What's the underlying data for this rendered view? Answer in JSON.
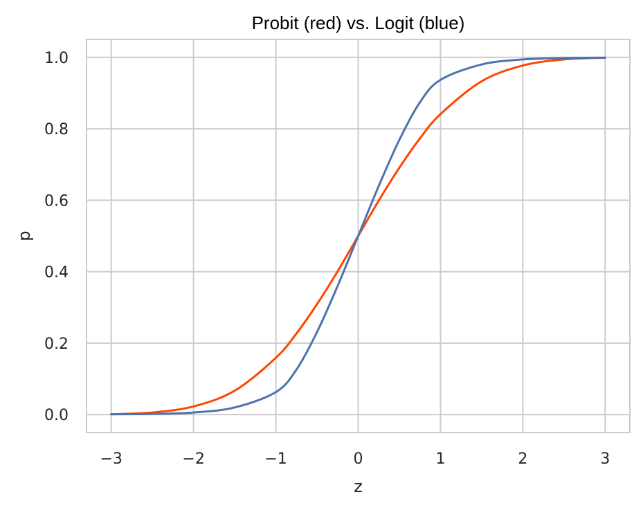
{
  "chart_data": {
    "type": "line",
    "title": "Probit (red) vs. Logit (blue)",
    "xlabel": "z",
    "ylabel": "p",
    "xlim": [
      -3.3,
      3.3
    ],
    "ylim": [
      -0.05,
      1.05
    ],
    "x_ticks": [
      -3,
      -2,
      -1,
      0,
      1,
      2,
      3
    ],
    "x_tick_labels": [
      "−3",
      "−2",
      "−1",
      "0",
      "1",
      "2",
      "3"
    ],
    "y_ticks": [
      0.0,
      0.2,
      0.4,
      0.6,
      0.8,
      1.0
    ],
    "y_tick_labels": [
      "0.0",
      "0.2",
      "0.4",
      "0.6",
      "0.8",
      "1.0"
    ],
    "grid": true,
    "x": [
      -3,
      -2.5,
      -2,
      -1.5,
      -1,
      -0.75,
      -0.5,
      -0.25,
      0,
      0.25,
      0.5,
      0.75,
      1,
      1.5,
      2,
      2.5,
      3
    ],
    "series": [
      {
        "color": "#ff4500",
        "values": [
          0.001,
          0.006,
          0.023,
          0.067,
          0.159,
          0.227,
          0.309,
          0.401,
          0.5,
          0.599,
          0.691,
          0.773,
          0.841,
          0.933,
          0.977,
          0.994,
          0.999
        ]
      },
      {
        "color": "#4c72b0",
        "values": [
          0.001,
          0.002,
          0.006,
          0.02,
          0.063,
          0.126,
          0.231,
          0.36,
          0.5,
          0.64,
          0.769,
          0.874,
          0.937,
          0.98,
          0.994,
          0.998,
          0.999
        ]
      }
    ]
  }
}
